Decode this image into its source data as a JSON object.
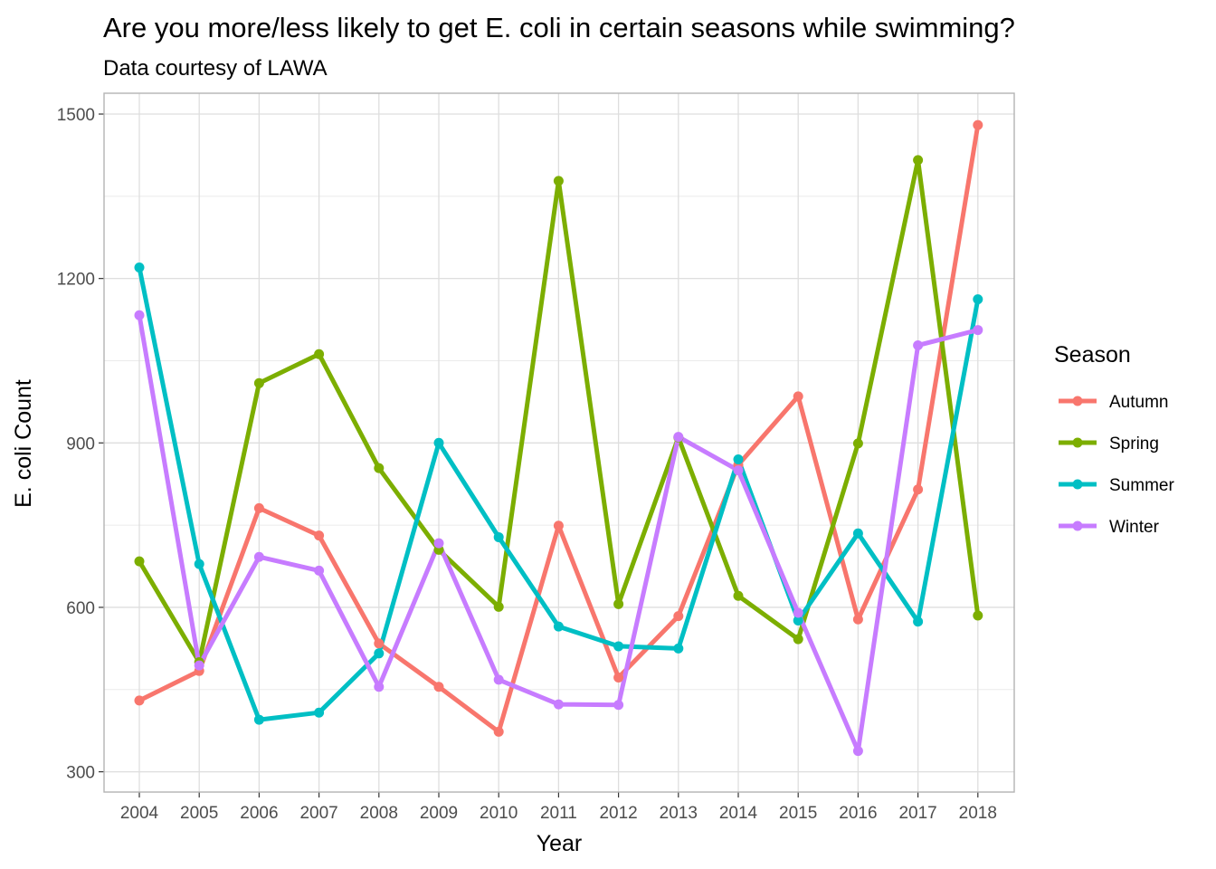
{
  "chart_data": {
    "type": "line",
    "title": "Are you more/less likely to get E. coli in certain seasons while swimming?",
    "subtitle": "Data courtesy of LAWA",
    "xlabel": "Year",
    "ylabel": "E. coli Count",
    "x": [
      "2004",
      "2005",
      "2006",
      "2007",
      "2008",
      "2009",
      "2010",
      "2011",
      "2012",
      "2013",
      "2014",
      "2015",
      "2016",
      "2017",
      "2018"
    ],
    "yticks": [
      "300",
      "600",
      "900",
      "1200",
      "1500"
    ],
    "ylim": [
      263,
      1538
    ],
    "grid": true,
    "legend": {
      "title": "Season",
      "position": "right"
    },
    "series": [
      {
        "name": "Autumn",
        "color": "#F8766D",
        "values": [
          430,
          484,
          781,
          731,
          534,
          455,
          373,
          749,
          472,
          584,
          860,
          985,
          578,
          815,
          1480
        ]
      },
      {
        "name": "Spring",
        "color": "#7CAE00",
        "values": [
          684,
          500,
          1009,
          1062,
          854,
          705,
          601,
          1378,
          606,
          910,
          621,
          542,
          899,
          1416,
          585
        ]
      },
      {
        "name": "Summer",
        "color": "#00BFC4",
        "values": [
          1220,
          679,
          395,
          408,
          516,
          900,
          728,
          565,
          529,
          525,
          870,
          576,
          735,
          574,
          1162
        ]
      },
      {
        "name": "Winter",
        "color": "#C77CFF",
        "values": [
          1133,
          494,
          692,
          667,
          455,
          717,
          468,
          423,
          422,
          911,
          850,
          590,
          338,
          1078,
          1106
        ]
      }
    ]
  }
}
